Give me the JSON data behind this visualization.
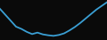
{
  "x": [
    0,
    1,
    2,
    3,
    4,
    5,
    6,
    7,
    8,
    9,
    10,
    11,
    12,
    13,
    14,
    15,
    16,
    17,
    18,
    19,
    20
  ],
  "y": [
    210000,
    170000,
    130000,
    90000,
    75000,
    55000,
    40000,
    50000,
    38000,
    32000,
    28000,
    34000,
    45000,
    65000,
    88000,
    115000,
    145000,
    175000,
    205000,
    230000,
    255000
  ],
  "line_color": "#3a9fd4",
  "line_width": 1.3,
  "background_color": "#0a0a0a",
  "ylim_min": 0,
  "ylim_max": 270000
}
